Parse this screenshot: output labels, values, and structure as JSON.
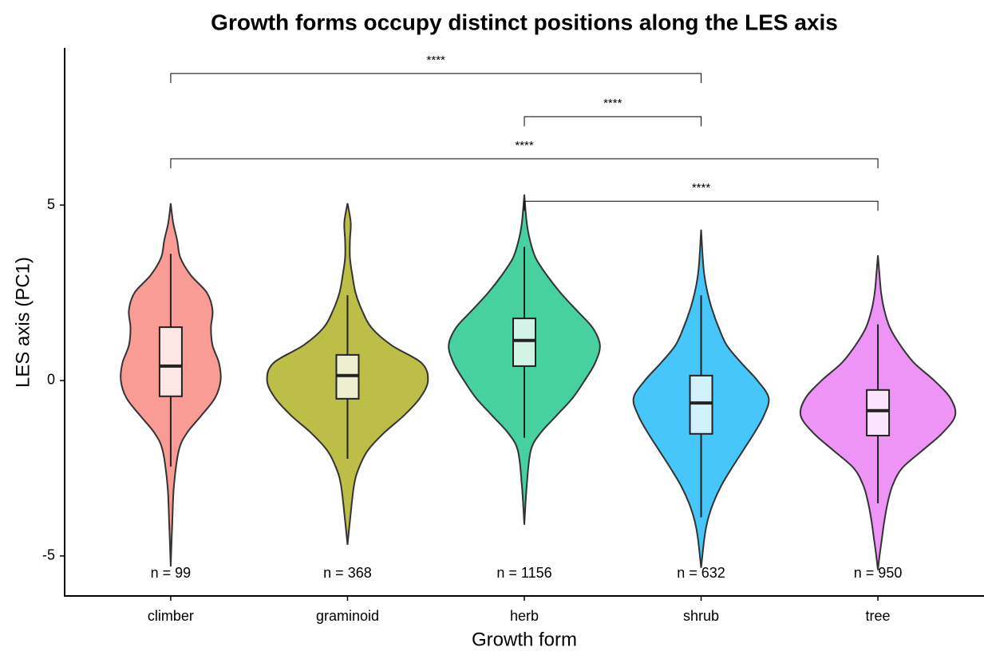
{
  "chart_data": {
    "type": "violin",
    "title": "Growth forms occupy distinct positions along the LES axis",
    "x_label": "Growth form",
    "y_label": "LES axis (PC1)",
    "categories": [
      "climber",
      "graminoid",
      "herb",
      "shrub",
      "tree"
    ],
    "ylim": [
      -6.14,
      9.48
    ],
    "yticks": [
      -5,
      0,
      5
    ],
    "series": [
      {
        "name": "climber",
        "color": "#F8766D",
        "n_label": "n = 99",
        "box": {
          "whisker_low": -2.45,
          "q1": -0.45,
          "median": 0.41,
          "q3": 1.52,
          "whisker_high": 3.61
        },
        "density": {
          "y": [
            -5.3,
            -4,
            -3,
            -2,
            -1.5,
            -1,
            -0.5,
            0,
            0.5,
            1,
            1.5,
            2,
            2.5,
            3,
            3.5,
            4,
            4.5,
            5.05
          ],
          "width": [
            0,
            2,
            4,
            10,
            20,
            38,
            55,
            62,
            60,
            52,
            50,
            52,
            45,
            25,
            12,
            8,
            3,
            0
          ]
        }
      },
      {
        "name": "graminoid",
        "color": "#A3A500",
        "n_label": "n = 368",
        "box": {
          "whisker_low": -2.23,
          "q1": -0.52,
          "median": 0.14,
          "q3": 0.73,
          "whisker_high": 2.43
        },
        "density": {
          "y": [
            -4.68,
            -4,
            -3,
            -2.5,
            -2,
            -1.5,
            -1,
            -0.5,
            0,
            0.5,
            1,
            1.5,
            2,
            2.5,
            3,
            3.5,
            4,
            4.5,
            5.05
          ],
          "width": [
            0,
            3,
            8,
            14,
            25,
            45,
            70,
            90,
            100,
            92,
            55,
            30,
            18,
            10,
            6,
            3,
            3,
            4,
            0
          ]
        }
      },
      {
        "name": "herb",
        "color": "#00BF7D",
        "n_label": "n = 1156",
        "box": {
          "whisker_low": -1.63,
          "q1": 0.41,
          "median": 1.14,
          "q3": 1.77,
          "whisker_high": 3.81
        },
        "density": {
          "y": [
            -4.11,
            -3,
            -2,
            -1.5,
            -1,
            -0.5,
            0,
            0.5,
            1,
            1.5,
            2,
            2.5,
            3,
            3.5,
            4,
            4.5,
            5.3
          ],
          "width": [
            0,
            3,
            8,
            20,
            40,
            60,
            75,
            88,
            94,
            85,
            65,
            45,
            28,
            14,
            7,
            3,
            0
          ]
        }
      },
      {
        "name": "shrub",
        "color": "#00B0F6",
        "n_label": "n = 632",
        "box": {
          "whisker_low": -3.9,
          "q1": -1.52,
          "median": -0.64,
          "q3": 0.14,
          "whisker_high": 2.43
        },
        "density": {
          "y": [
            -5.34,
            -4.5,
            -4,
            -3.5,
            -3,
            -2.5,
            -2,
            -1.5,
            -1,
            -0.5,
            0,
            0.5,
            1,
            1.5,
            2,
            2.5,
            3,
            3.5,
            4.3
          ],
          "width": [
            0,
            4,
            8,
            15,
            25,
            38,
            52,
            66,
            78,
            84,
            70,
            50,
            32,
            22,
            14,
            8,
            4,
            2,
            0
          ]
        }
      },
      {
        "name": "tree",
        "color": "#E76BF3",
        "n_label": "n = 950",
        "box": {
          "whisker_low": -3.5,
          "q1": -1.57,
          "median": -0.86,
          "q3": -0.27,
          "whisker_high": 1.6
        },
        "density": {
          "y": [
            -5.4,
            -5,
            -4.5,
            -4,
            -3.5,
            -3,
            -2.5,
            -2,
            -1.5,
            -1,
            -0.5,
            0,
            0.5,
            1,
            1.5,
            2,
            2.5,
            3,
            3.57
          ],
          "width": [
            0,
            2,
            5,
            8,
            12,
            18,
            30,
            55,
            80,
            96,
            90,
            70,
            45,
            28,
            15,
            8,
            4,
            2,
            0
          ]
        }
      }
    ],
    "comparisons": [
      {
        "groups": [
          "climber",
          "shrub"
        ],
        "y": 8.75,
        "label": "****"
      },
      {
        "groups": [
          "herb",
          "shrub"
        ],
        "y": 7.52,
        "label": "****"
      },
      {
        "groups": [
          "climber",
          "tree"
        ],
        "y": 6.32,
        "label": "****"
      },
      {
        "groups": [
          "herb",
          "tree"
        ],
        "y": 5.11,
        "label": "****"
      }
    ]
  }
}
